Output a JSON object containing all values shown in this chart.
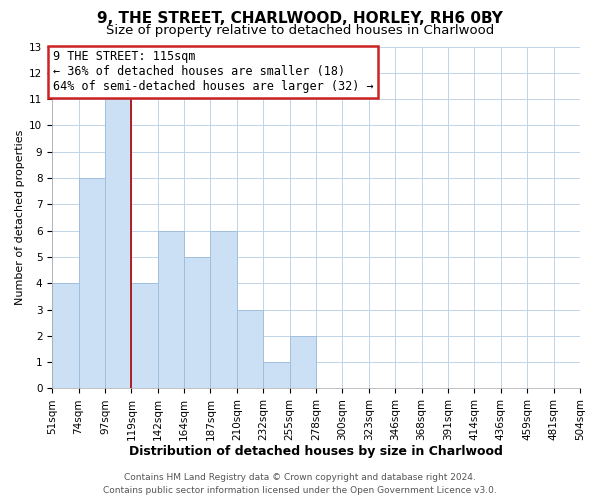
{
  "title": "9, THE STREET, CHARLWOOD, HORLEY, RH6 0BY",
  "subtitle": "Size of property relative to detached houses in Charlwood",
  "xlabel": "Distribution of detached houses by size in Charlwood",
  "ylabel": "Number of detached properties",
  "bin_labels": [
    "51sqm",
    "74sqm",
    "97sqm",
    "119sqm",
    "142sqm",
    "164sqm",
    "187sqm",
    "210sqm",
    "232sqm",
    "255sqm",
    "278sqm",
    "300sqm",
    "323sqm",
    "346sqm",
    "368sqm",
    "391sqm",
    "414sqm",
    "436sqm",
    "459sqm",
    "481sqm",
    "504sqm"
  ],
  "counts": [
    4,
    8,
    11,
    4,
    6,
    5,
    6,
    3,
    1,
    2,
    0,
    0,
    0,
    0,
    0,
    0,
    0,
    0,
    0,
    0
  ],
  "n_bins": 20,
  "bar_color": "#cce0f5",
  "bar_edge_color": "#9bbcdb",
  "vline_bin_index": 3,
  "vline_color": "#aa0000",
  "annotation_text": "9 THE STREET: 115sqm\n← 36% of detached houses are smaller (18)\n64% of semi-detached houses are larger (32) →",
  "annotation_box_color": "white",
  "annotation_box_edge_color": "#cc2222",
  "ylim": [
    0,
    13
  ],
  "yticks": [
    0,
    1,
    2,
    3,
    4,
    5,
    6,
    7,
    8,
    9,
    10,
    11,
    12,
    13
  ],
  "footer_line1": "Contains HM Land Registry data © Crown copyright and database right 2024.",
  "footer_line2": "Contains public sector information licensed under the Open Government Licence v3.0.",
  "bg_color": "#ffffff",
  "grid_color": "#c0d4e8",
  "title_fontsize": 11,
  "subtitle_fontsize": 9.5,
  "xlabel_fontsize": 9,
  "ylabel_fontsize": 8,
  "tick_fontsize": 7.5,
  "annotation_fontsize": 8.5,
  "footer_fontsize": 6.5
}
